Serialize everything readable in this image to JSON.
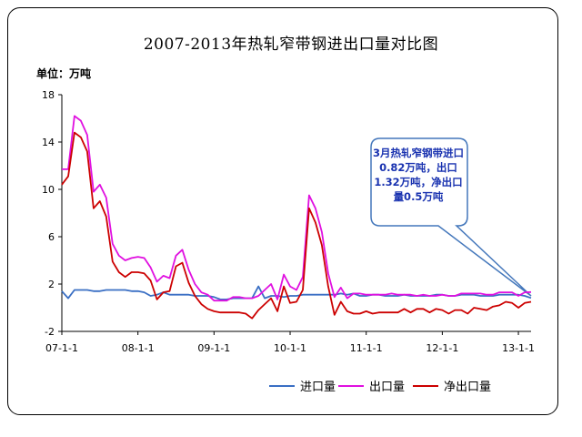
{
  "title": "2007-2013年热轧窄带钢进出口量对比图",
  "unit_label": "单位：万吨",
  "annotation": "3月热轧窄钢带进口0.82万吨，出口1.32万吨，净出口量0.5万吨",
  "colors": {
    "import": "#3a6fc4",
    "export": "#e010e0",
    "net_export": "#cc0000",
    "annotation_text": "#1a33b0",
    "annotation_border": "#4477bb"
  },
  "chart_data": {
    "type": "line",
    "title": "2007-2013年热轧窄带钢进出口量对比图",
    "ylabel": "单位：万吨",
    "xlabel": "",
    "ylim": [
      -2,
      18
    ],
    "y_ticks": [
      "-2",
      "2",
      "6",
      "10",
      "14",
      "18"
    ],
    "x_tick_labels": [
      "07-1-1",
      "08-1-1",
      "09-1-1",
      "10-1-1",
      "11-1-1",
      "12-1-1",
      "13-1-1"
    ],
    "x_range": [
      "2007-01",
      "2013-03"
    ],
    "grid": false,
    "legend_position": "bottom",
    "x": [
      "2007-01",
      "2007-02",
      "2007-03",
      "2007-04",
      "2007-05",
      "2007-06",
      "2007-07",
      "2007-08",
      "2007-09",
      "2007-10",
      "2007-11",
      "2007-12",
      "2008-01",
      "2008-02",
      "2008-03",
      "2008-04",
      "2008-05",
      "2008-06",
      "2008-07",
      "2008-08",
      "2008-09",
      "2008-10",
      "2008-11",
      "2008-12",
      "2009-01",
      "2009-02",
      "2009-03",
      "2009-04",
      "2009-05",
      "2009-06",
      "2009-07",
      "2009-08",
      "2009-09",
      "2009-10",
      "2009-11",
      "2009-12",
      "2010-01",
      "2010-02",
      "2010-03",
      "2010-04",
      "2010-05",
      "2010-06",
      "2010-07",
      "2010-08",
      "2010-09",
      "2010-10",
      "2010-11",
      "2010-12",
      "2011-01",
      "2011-02",
      "2011-03",
      "2011-04",
      "2011-05",
      "2011-06",
      "2011-07",
      "2011-08",
      "2011-09",
      "2011-10",
      "2011-11",
      "2011-12",
      "2012-01",
      "2012-02",
      "2012-03",
      "2012-04",
      "2012-05",
      "2012-06",
      "2012-07",
      "2012-08",
      "2012-09",
      "2012-10",
      "2012-11",
      "2012-12",
      "2013-01",
      "2013-02",
      "2013-03"
    ],
    "series": [
      {
        "name": "进口量",
        "values": [
          1.4,
          0.8,
          1.5,
          1.5,
          1.5,
          1.4,
          1.4,
          1.5,
          1.5,
          1.5,
          1.5,
          1.4,
          1.4,
          1.3,
          1.0,
          1.1,
          1.3,
          1.1,
          1.1,
          1.1,
          1.1,
          1.0,
          1.0,
          1.0,
          0.9,
          0.7,
          0.7,
          0.8,
          0.8,
          0.8,
          0.8,
          1.8,
          0.8,
          1.0,
          1.0,
          0.9,
          1.0,
          1.0,
          1.1,
          1.1,
          1.1,
          1.1,
          1.1,
          1.1,
          1.2,
          1.1,
          1.2,
          1.0,
          1.0,
          1.1,
          1.1,
          1.0,
          1.0,
          1.0,
          1.1,
          1.0,
          1.0,
          1.0,
          1.0,
          1.1,
          1.1,
          1.0,
          1.0,
          1.1,
          1.1,
          1.1,
          1.0,
          1.0,
          1.0,
          1.1,
          1.1,
          1.1,
          1.1,
          1.0,
          0.82
        ]
      },
      {
        "name": "出口量",
        "values": [
          11.7,
          11.7,
          16.2,
          15.8,
          14.6,
          9.8,
          10.4,
          9.3,
          5.4,
          4.4,
          4.0,
          4.2,
          4.3,
          4.2,
          3.4,
          2.2,
          2.7,
          2.5,
          4.4,
          4.9,
          3.2,
          2.0,
          1.3,
          1.1,
          0.6,
          0.6,
          0.6,
          0.9,
          0.9,
          0.8,
          0.8,
          1.0,
          1.5,
          2.0,
          0.7,
          2.8,
          1.8,
          1.5,
          2.6,
          9.5,
          8.4,
          6.4,
          2.9,
          0.9,
          1.7,
          0.8,
          1.2,
          1.2,
          1.1,
          1.1,
          1.1,
          1.1,
          1.2,
          1.1,
          1.1,
          1.1,
          1.0,
          1.1,
          1.0,
          1.0,
          1.1,
          1.0,
          1.0,
          1.2,
          1.2,
          1.2,
          1.2,
          1.1,
          1.1,
          1.3,
          1.3,
          1.3,
          1.0,
          1.3,
          1.32
        ]
      },
      {
        "name": "净出口量",
        "values": [
          10.4,
          11.1,
          14.8,
          14.4,
          13.2,
          8.4,
          9.0,
          7.7,
          3.9,
          3.0,
          2.6,
          3.0,
          3.0,
          2.9,
          2.3,
          0.7,
          1.3,
          1.4,
          3.5,
          3.8,
          2.1,
          1.0,
          0.3,
          -0.1,
          -0.3,
          -0.4,
          -0.4,
          -0.4,
          -0.4,
          -0.5,
          -0.9,
          -0.2,
          0.3,
          0.8,
          -0.3,
          1.8,
          0.4,
          0.5,
          1.5,
          8.4,
          7.2,
          5.3,
          1.8,
          -0.6,
          0.5,
          -0.3,
          -0.5,
          -0.5,
          -0.3,
          -0.5,
          -0.4,
          -0.4,
          -0.4,
          -0.4,
          -0.1,
          -0.4,
          -0.1,
          -0.1,
          -0.4,
          -0.1,
          -0.2,
          -0.5,
          -0.2,
          -0.2,
          -0.5,
          0.0,
          -0.1,
          -0.2,
          0.1,
          0.2,
          0.5,
          0.4,
          0.0,
          0.4,
          0.5
        ]
      }
    ]
  }
}
